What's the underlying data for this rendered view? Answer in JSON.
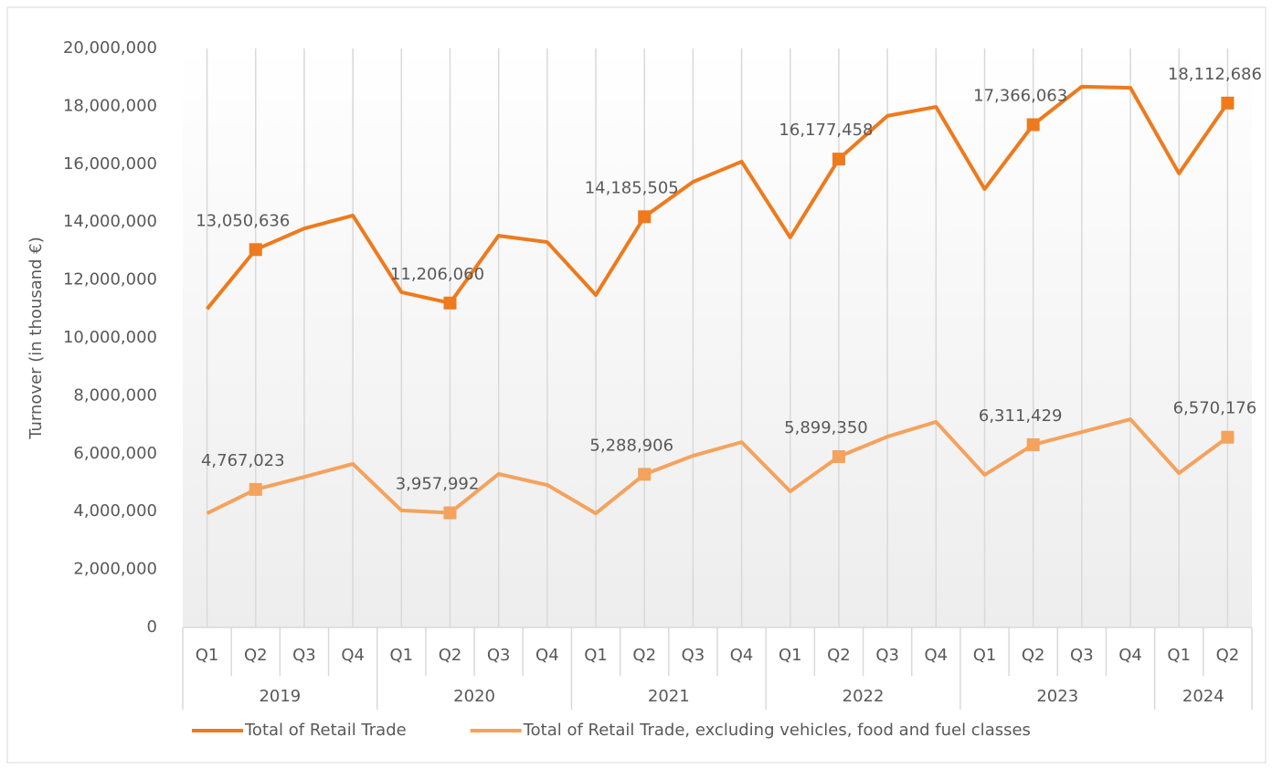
{
  "chart_data": {
    "type": "line",
    "y_axis_label": "Turnover (in thousand €)",
    "categories": [
      [
        "2019",
        "Q1"
      ],
      [
        "2019",
        "Q2"
      ],
      [
        "2019",
        "Q3"
      ],
      [
        "2019",
        "Q4"
      ],
      [
        "2020",
        "Q1"
      ],
      [
        "2020",
        "Q2"
      ],
      [
        "2020",
        "Q3"
      ],
      [
        "2020",
        "Q4"
      ],
      [
        "2021",
        "Q1"
      ],
      [
        "2021",
        "Q2"
      ],
      [
        "2021",
        "Q3"
      ],
      [
        "2021",
        "Q4"
      ],
      [
        "2022",
        "Q1"
      ],
      [
        "2022",
        "Q2"
      ],
      [
        "2022",
        "Q3"
      ],
      [
        "2022",
        "Q4"
      ],
      [
        "2023",
        "Q1"
      ],
      [
        "2023",
        "Q2"
      ],
      [
        "2023",
        "Q3"
      ],
      [
        "2023",
        "Q4"
      ],
      [
        "2024",
        "Q1"
      ],
      [
        "2024",
        "Q2"
      ]
    ],
    "series": [
      {
        "name": "Total of Retail Trade",
        "color": "#ee7a1d",
        "values": [
          11000000,
          13050636,
          13780000,
          14230000,
          11580000,
          11206060,
          13530000,
          13310000,
          11480000,
          14185505,
          15390000,
          16090000,
          13470000,
          16177458,
          17670000,
          17980000,
          15140000,
          17366063,
          18680000,
          18640000,
          15680000,
          18112686
        ],
        "value_labels": [
          null,
          "13,050,636",
          null,
          null,
          null,
          "11,206,060",
          null,
          null,
          null,
          "14,185,505",
          null,
          null,
          null,
          "16,177,458",
          null,
          null,
          null,
          "17,366,063",
          null,
          null,
          null,
          "18,112,686"
        ]
      },
      {
        "name": "Total of Retail Trade, excluding vehicles, food and fuel classes",
        "color": "#f5a25c",
        "values": [
          3940000,
          4767023,
          5200000,
          5650000,
          4040000,
          3957992,
          5300000,
          4920000,
          3940000,
          5288906,
          5930000,
          6400000,
          4700000,
          5899350,
          6590000,
          7100000,
          5270000,
          6311429,
          6750000,
          7190000,
          5330000,
          6570176
        ],
        "value_labels": [
          null,
          "4,767,023",
          null,
          null,
          null,
          "3,957,992",
          null,
          null,
          null,
          "5,288,906",
          null,
          null,
          null,
          "5,899,350",
          null,
          null,
          null,
          "6,311,429",
          null,
          null,
          null,
          "6,570,176"
        ]
      }
    ],
    "ylim": [
      0,
      20000000
    ],
    "yticks": [
      0,
      {
        "value": 2000000,
        "label": "2,000,000"
      },
      {
        "value": 4000000,
        "label": "4,000,000"
      },
      {
        "value": 6000000,
        "label": "6,000,000"
      },
      {
        "value": 8000000,
        "label": "8,000,000"
      },
      {
        "value": 10000000,
        "label": "10,000,000"
      },
      {
        "value": 12000000,
        "label": "12,000,000"
      },
      {
        "value": 14000000,
        "label": "14,000,000"
      },
      {
        "value": 16000000,
        "label": "16,000,000"
      },
      {
        "value": 18000000,
        "label": "18,000,000"
      },
      {
        "value": 20000000,
        "label": "20,000,000"
      }
    ],
    "grid": true,
    "legend": "bottom"
  }
}
